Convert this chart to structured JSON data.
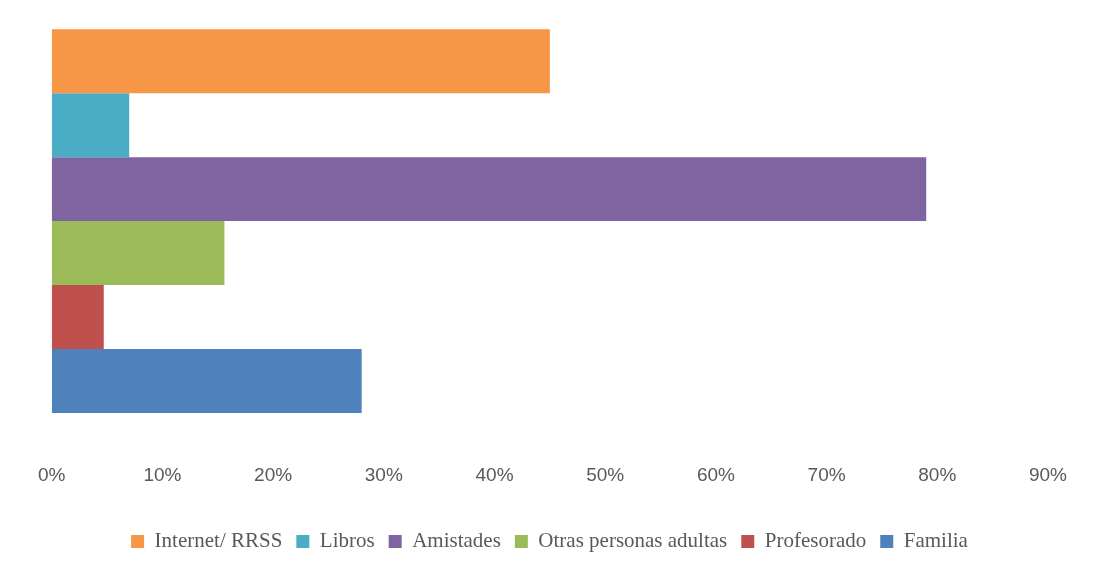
{
  "chart_data": {
    "type": "bar",
    "orientation": "horizontal",
    "categories": [
      null
    ],
    "series": [
      {
        "name": "Internet/ RRSS",
        "color": "#f79646",
        "values": [
          45
        ]
      },
      {
        "name": "Libros",
        "color": "#4bacc6",
        "values": [
          7
        ]
      },
      {
        "name": "Amistades",
        "color": "#8064a2",
        "values": [
          79
        ]
      },
      {
        "name": "Otras personas adultas",
        "color": "#9bbb59",
        "values": [
          15.6
        ]
      },
      {
        "name": "Profesorado",
        "color": "#c0504d",
        "values": [
          4.7
        ]
      },
      {
        "name": "Familia",
        "color": "#4f81bd",
        "values": [
          28
        ]
      }
    ],
    "xlim": [
      0,
      90
    ],
    "xticks": [
      {
        "value": 0,
        "label": "0%"
      },
      {
        "value": 10,
        "label": "10%"
      },
      {
        "value": 20,
        "label": "20%"
      },
      {
        "value": 30,
        "label": "30%"
      },
      {
        "value": 40,
        "label": "40%"
      },
      {
        "value": 50,
        "label": "50%"
      },
      {
        "value": 60,
        "label": "60%"
      },
      {
        "value": 70,
        "label": "70%"
      },
      {
        "value": 80,
        "label": "80%"
      },
      {
        "value": 90,
        "label": "90%"
      }
    ],
    "grid": false,
    "legend": "bottom"
  }
}
